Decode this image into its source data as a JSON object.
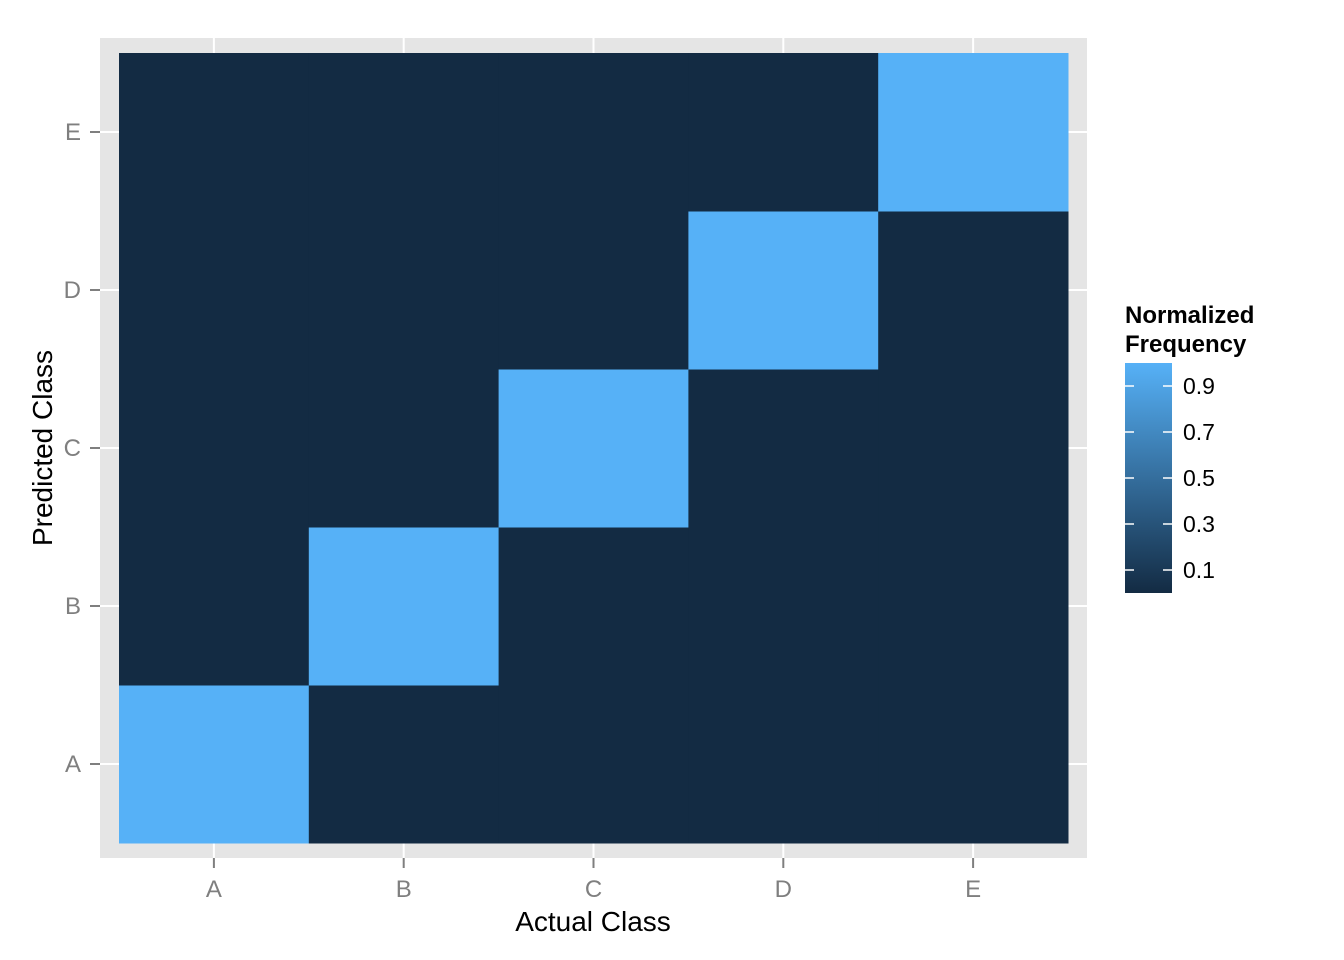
{
  "chart_data": {
    "type": "heatmap",
    "x_categories": [
      "A",
      "B",
      "C",
      "D",
      "E"
    ],
    "y_categories": [
      "A",
      "B",
      "C",
      "D",
      "E"
    ],
    "xlabel": "Actual Class",
    "ylabel": "Predicted Class",
    "values": [
      [
        1,
        0,
        0,
        0,
        0
      ],
      [
        0,
        1,
        0,
        0,
        0
      ],
      [
        0,
        0,
        1,
        0,
        0
      ],
      [
        0,
        0,
        0,
        1,
        0
      ],
      [
        0,
        0,
        0,
        0,
        1
      ]
    ],
    "legend": {
      "title": [
        "Normalized",
        "Frequency"
      ],
      "breaks": [
        0.1,
        0.3,
        0.5,
        0.7,
        0.9
      ],
      "break_labels": [
        "0.1",
        "0.3",
        "0.5",
        "0.7",
        "0.9"
      ],
      "range": [
        0,
        1
      ],
      "low_color": "#132B43",
      "high_color": "#56B1F7",
      "placement": "right"
    },
    "panel_background": "#E5E5E5",
    "grid": true
  }
}
